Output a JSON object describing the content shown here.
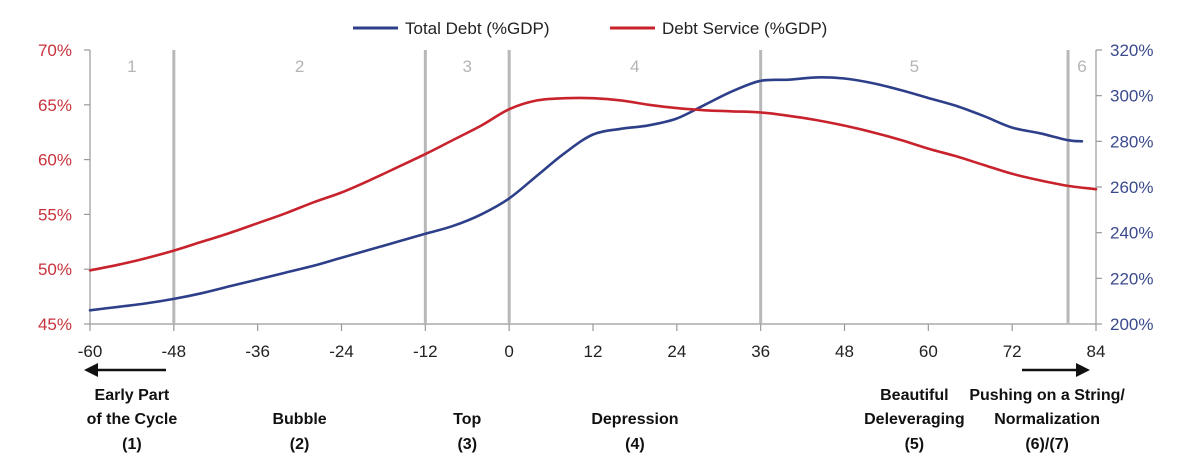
{
  "chart_data": {
    "type": "line",
    "x_ticks": [
      -60,
      -48,
      -36,
      -24,
      -12,
      0,
      12,
      24,
      36,
      48,
      60,
      72,
      84
    ],
    "xlim": [
      -60,
      84
    ],
    "y_left": {
      "lim": [
        45,
        70
      ],
      "ticks": [
        "45%",
        "50%",
        "55%",
        "60%",
        "65%",
        "70%"
      ],
      "values": [
        45,
        50,
        55,
        60,
        65,
        70
      ]
    },
    "y_right": {
      "lim": [
        200,
        320
      ],
      "ticks": [
        "200%",
        "220%",
        "240%",
        "260%",
        "280%",
        "300%",
        "320%"
      ],
      "values": [
        200,
        220,
        240,
        260,
        280,
        300,
        320
      ]
    },
    "series": [
      {
        "name": "Total Debt (%GDP)",
        "axis": "right",
        "color": "#2e3f8a",
        "x": [
          -60,
          -56,
          -52,
          -48,
          -44,
          -40,
          -36,
          -32,
          -28,
          -24,
          -20,
          -16,
          -12,
          -8,
          -4,
          0,
          4,
          8,
          12,
          16,
          20,
          24,
          28,
          32,
          36,
          40,
          44,
          48,
          52,
          56,
          60,
          64,
          68,
          72,
          76,
          80,
          82
        ],
        "y": [
          206,
          207.5,
          209,
          211,
          213.5,
          216.5,
          219.5,
          222.5,
          225.5,
          229,
          232.5,
          236,
          239.5,
          243,
          248,
          255,
          265,
          275,
          283,
          285.5,
          287,
          290,
          296,
          302,
          306.5,
          307,
          308,
          307.5,
          305.5,
          302.5,
          299,
          295.5,
          291,
          286,
          283.5,
          280.5,
          280
        ]
      },
      {
        "name": "Debt Service (%GDP)",
        "axis": "left",
        "color": "#c8232d",
        "x": [
          -60,
          -56,
          -52,
          -48,
          -44,
          -40,
          -36,
          -32,
          -28,
          -24,
          -20,
          -16,
          -12,
          -8,
          -4,
          0,
          4,
          8,
          12,
          16,
          20,
          24,
          28,
          32,
          36,
          40,
          44,
          48,
          52,
          56,
          60,
          64,
          68,
          72,
          76,
          80,
          84
        ],
        "y": [
          49.9,
          50.4,
          51.0,
          51.7,
          52.5,
          53.3,
          54.2,
          55.1,
          56.1,
          57.0,
          58.1,
          59.3,
          60.5,
          61.8,
          63.1,
          64.6,
          65.4,
          65.6,
          65.6,
          65.4,
          65.0,
          64.7,
          64.5,
          64.4,
          64.3,
          64.0,
          63.6,
          63.1,
          62.5,
          61.8,
          61.0,
          60.3,
          59.5,
          58.7,
          58.1,
          57.6,
          57.3
        ]
      }
    ],
    "phases": [
      {
        "label": "1",
        "start": -60,
        "end": -48
      },
      {
        "label": "2",
        "start": -48,
        "end": -12
      },
      {
        "label": "3",
        "start": -12,
        "end": 0
      },
      {
        "label": "4",
        "start": 0,
        "end": 36
      },
      {
        "label": "5",
        "start": 36,
        "end": 80
      },
      {
        "label": "6",
        "start": 80,
        "end": 84
      }
    ],
    "stage_labels": [
      {
        "lines": [
          "Early Part",
          "of the Cycle",
          "(1)"
        ],
        "x": -54,
        "arrow": "left"
      },
      {
        "lines": [
          "Bubble",
          "(2)"
        ],
        "x": -30
      },
      {
        "lines": [
          "Top",
          "(3)"
        ],
        "x": -6
      },
      {
        "lines": [
          "Depression",
          "(4)"
        ],
        "x": 18
      },
      {
        "lines": [
          "Beautiful",
          "Deleveraging",
          "(5)"
        ],
        "x": 58
      },
      {
        "lines": [
          "Pushing on a String/",
          "Normalization",
          "(6)/(7)"
        ],
        "x": 77,
        "arrow": "right"
      }
    ],
    "legend_position": "top-center",
    "grid": false
  }
}
